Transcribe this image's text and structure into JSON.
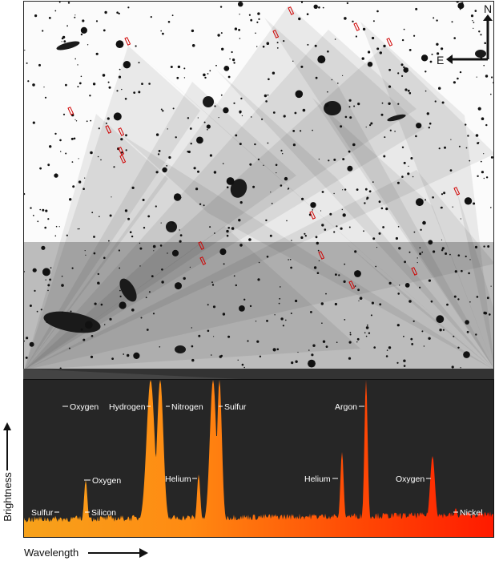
{
  "compass": {
    "north_label": "N",
    "east_label": "E"
  },
  "axes": {
    "y_label": "Brightness",
    "x_label": "Wavelength"
  },
  "spectral_lines": [
    {
      "element": "Oxygen",
      "side": "right"
    },
    {
      "element": "Hydrogen",
      "side": "left"
    },
    {
      "element": "Nitrogen",
      "side": "right"
    },
    {
      "element": "Sulfur",
      "side": "right"
    },
    {
      "element": "Argon",
      "side": "left"
    },
    {
      "element": "Oxygen",
      "side": "right"
    },
    {
      "element": "Helium",
      "side": "left"
    },
    {
      "element": "Helium",
      "side": "left"
    },
    {
      "element": "Oxygen",
      "side": "left"
    },
    {
      "element": "Sulfur",
      "side": "left"
    },
    {
      "element": "Silicon",
      "side": "right"
    },
    {
      "element": "Nickel",
      "side": "right"
    }
  ],
  "colors": {
    "spectrum_start": "#f7a21b",
    "spectrum_end": "#ff1a00",
    "panel_bg": "#262626",
    "slit_marker": "#d00000"
  }
}
